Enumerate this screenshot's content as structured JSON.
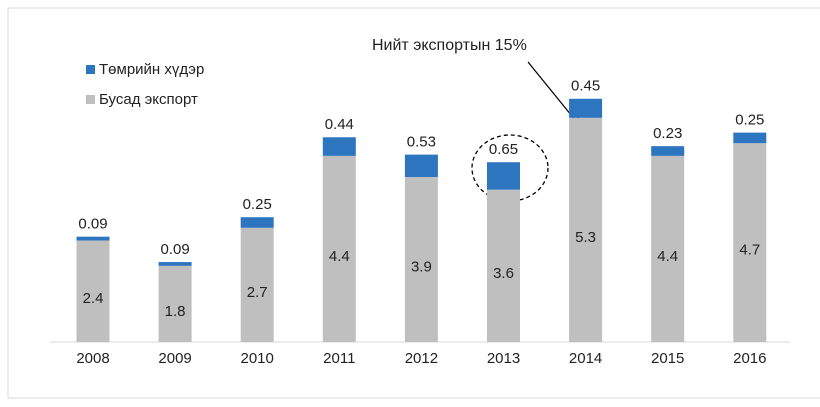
{
  "chart_data": {
    "type": "stacked_bar",
    "categories": [
      "2008",
      "2009",
      "2010",
      "2011",
      "2012",
      "2013",
      "2014",
      "2015",
      "2016"
    ],
    "series": [
      {
        "name": "Төмрийн хүдэр",
        "color": "#2e75c0",
        "values": [
          0.09,
          0.09,
          0.25,
          0.44,
          0.53,
          0.65,
          0.45,
          0.23,
          0.25
        ]
      },
      {
        "name": "Бусад экспорт",
        "color": "#bfbfbf",
        "values": [
          2.4,
          1.8,
          2.7,
          4.4,
          3.9,
          3.6,
          5.3,
          4.4,
          4.7
        ]
      }
    ],
    "annotation": "Нийт экспортын 15%"
  }
}
